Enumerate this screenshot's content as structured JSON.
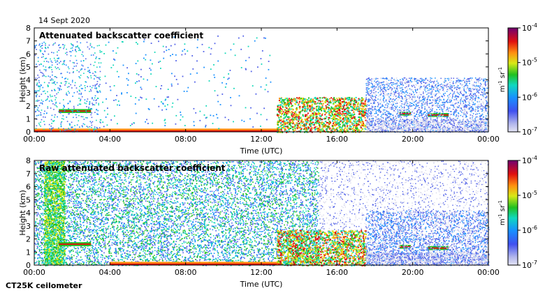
{
  "header": {
    "date": "14 Sept 2020"
  },
  "footer": {
    "instrument": "CT25K ceilometer"
  },
  "colorbar": {
    "unit_m": "m",
    "unit_sr": "sr",
    "unit_exp": "-1",
    "colors": [
      "#d8d8ec",
      "#5060e8",
      "#1890ff",
      "#10d8b8",
      "#20c020",
      "#d8e818",
      "#ff9010",
      "#e01010",
      "#700070"
    ]
  },
  "chart_data": [
    {
      "type": "heatmap",
      "title": "Attenuated backscatter coefficient",
      "xlabel": "Time (UTC)",
      "ylabel": "Height (km)",
      "x_ticks": [
        "00:00",
        "04:00",
        "08:00",
        "12:00",
        "16:00",
        "20:00",
        "00:00"
      ],
      "y_ticks": [
        "0",
        "1",
        "2",
        "3",
        "4",
        "5",
        "6",
        "7",
        "8"
      ],
      "xlim_hours": [
        0,
        24
      ],
      "ylim": [
        0,
        8
      ],
      "colorbar_ticks": [
        "10",
        "10",
        "10",
        "10"
      ],
      "colorbar_exponents": [
        "-4",
        "-5",
        "-6",
        "-7"
      ],
      "colorbar_scale": "log",
      "colorbar_range": [
        1e-07,
        0.0001
      ],
      "features": [
        {
          "kind": "cloud_layer",
          "start_h": 1.3,
          "end_h": 3.0,
          "height_km": 1.6
        },
        {
          "kind": "surface_layer",
          "start_h": 0.0,
          "end_h": 13.0,
          "height_km": 0.1
        },
        {
          "kind": "boundary_layer",
          "start_h": 12.8,
          "end_h": 17.5,
          "height_km": 1.5
        },
        {
          "kind": "cloud_layer",
          "start_h": 19.3,
          "end_h": 19.9,
          "height_km": 1.4
        },
        {
          "kind": "cloud_layer",
          "start_h": 20.8,
          "end_h": 21.9,
          "height_km": 1.3
        }
      ]
    },
    {
      "type": "heatmap",
      "title": "Raw attenuated backscatter coefficient",
      "xlabel": "Time (UTC)",
      "ylabel": "Height (km)",
      "x_ticks": [
        "00:00",
        "04:00",
        "08:00",
        "12:00",
        "16:00",
        "20:00",
        "00:00"
      ],
      "y_ticks": [
        "0",
        "1",
        "2",
        "3",
        "4",
        "5",
        "6",
        "7",
        "8"
      ],
      "xlim_hours": [
        0,
        24
      ],
      "ylim": [
        0,
        8
      ],
      "colorbar_ticks": [
        "10",
        "10",
        "10",
        "10"
      ],
      "colorbar_exponents": [
        "-4",
        "-5",
        "-6",
        "-7"
      ],
      "colorbar_scale": "log",
      "colorbar_range": [
        1e-07,
        0.0001
      ],
      "features": [
        {
          "kind": "noise_field",
          "start_h": 0.0,
          "end_h": 15.0,
          "height_km": 8.0
        },
        {
          "kind": "cloud_layer",
          "start_h": 1.3,
          "end_h": 3.0,
          "height_km": 1.6
        },
        {
          "kind": "surface_layer",
          "start_h": 4.0,
          "end_h": 13.0,
          "height_km": 0.1
        },
        {
          "kind": "boundary_layer",
          "start_h": 12.8,
          "end_h": 17.5,
          "height_km": 1.5
        },
        {
          "kind": "cloud_layer",
          "start_h": 19.3,
          "end_h": 19.9,
          "height_km": 1.4
        },
        {
          "kind": "cloud_layer",
          "start_h": 20.8,
          "end_h": 21.9,
          "height_km": 1.3
        }
      ]
    }
  ]
}
